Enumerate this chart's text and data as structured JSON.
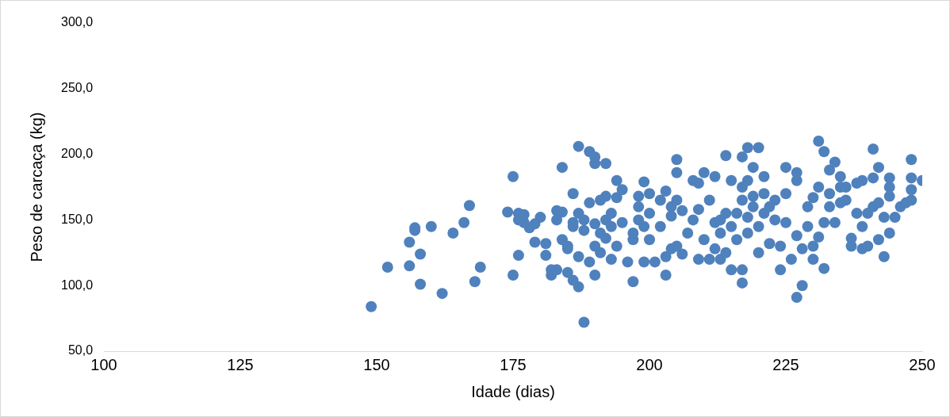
{
  "chart_data": {
    "type": "scatter",
    "xlabel": "Idade (dias)",
    "ylabel": "Peso de carcaça (kg)",
    "xlim": [
      100,
      250
    ],
    "xticks": [
      100,
      125,
      150,
      175,
      200,
      225,
      250
    ],
    "ylim": [
      50,
      300
    ],
    "yticks": [
      {
        "value": 50,
        "label": "50,0"
      },
      {
        "value": 100,
        "label": "100,0"
      },
      {
        "value": 150,
        "label": "150,0"
      },
      {
        "value": 200,
        "label": "200,0"
      },
      {
        "value": 250,
        "label": "250,0"
      },
      {
        "value": 300,
        "label": "300,0"
      }
    ],
    "grid": false,
    "legend": false,
    "marker": "circle",
    "series": [
      {
        "color": "#4f81bd",
        "x": [
          149,
          152,
          156,
          156,
          157,
          157,
          158,
          158,
          160,
          162,
          164,
          166,
          167,
          168,
          169,
          174,
          175,
          175,
          176,
          176,
          176,
          177,
          177,
          178,
          179,
          179,
          180,
          181,
          181,
          182,
          182,
          183,
          183,
          183,
          184,
          184,
          184,
          185,
          185,
          185,
          186,
          186,
          186,
          186,
          187,
          187,
          187,
          187,
          188,
          188,
          188,
          189,
          189,
          189,
          190,
          190,
          190,
          190,
          190,
          191,
          191,
          191,
          192,
          192,
          192,
          192,
          193,
          193,
          193,
          194,
          194,
          194,
          195,
          195,
          196,
          197,
          197,
          197,
          198,
          198,
          198,
          199,
          199,
          199,
          200,
          200,
          200,
          201,
          202,
          202,
          203,
          203,
          203,
          204,
          204,
          204,
          205,
          205,
          205,
          205,
          206,
          206,
          207,
          208,
          208,
          209,
          209,
          209,
          210,
          210,
          211,
          211,
          212,
          212,
          212,
          213,
          213,
          213,
          214,
          214,
          214,
          215,
          215,
          215,
          216,
          216,
          217,
          217,
          217,
          217,
          217,
          218,
          218,
          218,
          218,
          219,
          219,
          219,
          220,
          220,
          220,
          221,
          221,
          221,
          222,
          222,
          223,
          223,
          224,
          224,
          225,
          225,
          225,
          226,
          227,
          227,
          227,
          227,
          228,
          228,
          229,
          229,
          230,
          230,
          230,
          231,
          231,
          231,
          232,
          232,
          232,
          233,
          233,
          233,
          234,
          234,
          235,
          235,
          235,
          236,
          236,
          237,
          237,
          238,
          238,
          239,
          239,
          239,
          240,
          240,
          241,
          241,
          241,
          242,
          242,
          242,
          243,
          243,
          244,
          244,
          244,
          244,
          245,
          246,
          247,
          248,
          248,
          248,
          248,
          250
        ],
        "values": [
          84,
          114,
          133,
          115,
          142,
          144,
          124,
          101,
          145,
          94,
          140,
          148,
          161,
          103,
          114,
          156,
          183,
          108,
          123,
          150,
          155,
          148,
          154,
          144,
          133,
          147,
          152,
          132,
          123,
          108,
          112,
          157,
          150,
          112,
          190,
          156,
          135,
          130,
          110,
          128,
          104,
          170,
          145,
          148,
          206,
          99,
          155,
          122,
          72,
          142,
          150,
          202,
          163,
          118,
          193,
          198,
          108,
          147,
          130,
          165,
          140,
          125,
          168,
          150,
          193,
          136,
          145,
          120,
          155,
          180,
          167,
          130,
          173,
          148,
          118,
          103,
          135,
          140,
          150,
          168,
          160,
          179,
          118,
          145,
          170,
          155,
          135,
          118,
          165,
          145,
          172,
          122,
          108,
          160,
          128,
          153,
          196,
          186,
          165,
          130,
          157,
          124,
          140,
          180,
          150,
          120,
          178,
          158,
          186,
          135,
          165,
          120,
          183,
          148,
          128,
          150,
          120,
          140,
          199,
          125,
          155,
          180,
          145,
          112,
          135,
          155,
          198,
          175,
          165,
          102,
          112,
          205,
          180,
          152,
          140,
          190,
          168,
          160,
          145,
          125,
          205,
          183,
          155,
          170,
          160,
          132,
          150,
          165,
          112,
          130,
          190,
          170,
          148,
          120,
          180,
          186,
          91,
          138,
          100,
          128,
          160,
          145,
          167,
          120,
          130,
          210,
          175,
          137,
          202,
          148,
          113,
          188,
          170,
          160,
          194,
          148,
          183,
          163,
          175,
          165,
          175,
          130,
          136,
          178,
          155,
          180,
          145,
          128,
          155,
          130,
          204,
          182,
          160,
          190,
          163,
          135,
          122,
          152,
          182,
          175,
          168,
          140,
          152,
          160,
          163,
          196,
          182,
          173,
          165,
          180
        ]
      }
    ]
  }
}
